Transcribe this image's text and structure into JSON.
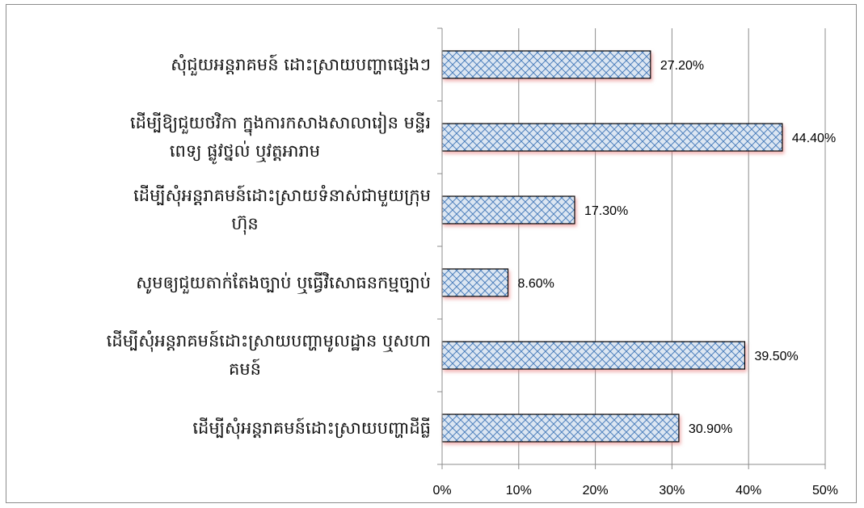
{
  "chart_data": {
    "type": "bar",
    "orientation": "horizontal",
    "categories": [
      "សុំជួយអន្តរាគមន៍ ដោះស្រាយបញ្ហាផ្សេងៗ",
      "ដើម្បីឱ្យជួយថវិកា ក្នុងការកសាងសាលារៀន មន្ទីរពេទ្យ ផ្លូវថ្នល់ ឬវត្តអារាម",
      "ដើម្បីសុំអន្តរាគមន៍ដោះស្រាយទំនាស់ជាមួយក្រុមហ៊ុន",
      "សូមឲ្យជួយតាក់តែងច្បាប់ ឬធ្វើវិសោធនកម្មច្បាប់",
      "ដើម្បីសុំអន្តរាគមន៍ដោះស្រាយបញ្ហាមូលដ្ឋាន ឬសហគមន៍",
      "ដើម្បីសុំអន្តរាគមន៍ដោះស្រាយបញ្ហាដីធ្លី"
    ],
    "category_lines": [
      [
        "សុំជួយអន្តរាគមន៍ ដោះស្រាយបញ្ហាផ្សេងៗ"
      ],
      [
        "ដើម្បីឱ្យជួយថវិកា ក្នុងការកសាងសាលារៀន មន្ទីរ",
        "ពេទ្យ ផ្លូវថ្នល់ ឬវត្តអារាម"
      ],
      [
        "ដើម្បីសុំអន្តរាគមន៍ដោះស្រាយទំនាស់ជាមួយក្រុម",
        "ហ៊ុន"
      ],
      [
        "សូមឲ្យជួយតាក់តែងច្បាប់ ឬធ្វើវិសោធនកម្មច្បាប់"
      ],
      [
        "ដើម្បីសុំអន្តរាគមន៍ដោះស្រាយបញ្ហាមូលដ្ឋាន ឬសហា",
        "គមន៍"
      ],
      [
        "ដើម្បីសុំអន្តរាគមន៍ដោះស្រាយបញ្ហាដីធ្លី"
      ]
    ],
    "values": [
      27.2,
      44.4,
      17.3,
      8.6,
      39.5,
      30.9
    ],
    "value_labels": [
      "27.20%",
      "44.40%",
      "17.30%",
      "8.60%",
      "39.50%",
      "30.90%"
    ],
    "x_ticks": [
      "0%",
      "10%",
      "20%",
      "30%",
      "40%",
      "50%"
    ],
    "xlim": [
      0,
      50
    ],
    "title": "",
    "xlabel": "",
    "ylabel": "",
    "grid": "vertical",
    "legend": "none",
    "colors": {
      "bar_fill": "#dce6f2",
      "hatch": "#4f81bd",
      "bar_outline": "#000000",
      "shadow": "#f4b7b7",
      "grid": "#8c8c8c"
    }
  }
}
